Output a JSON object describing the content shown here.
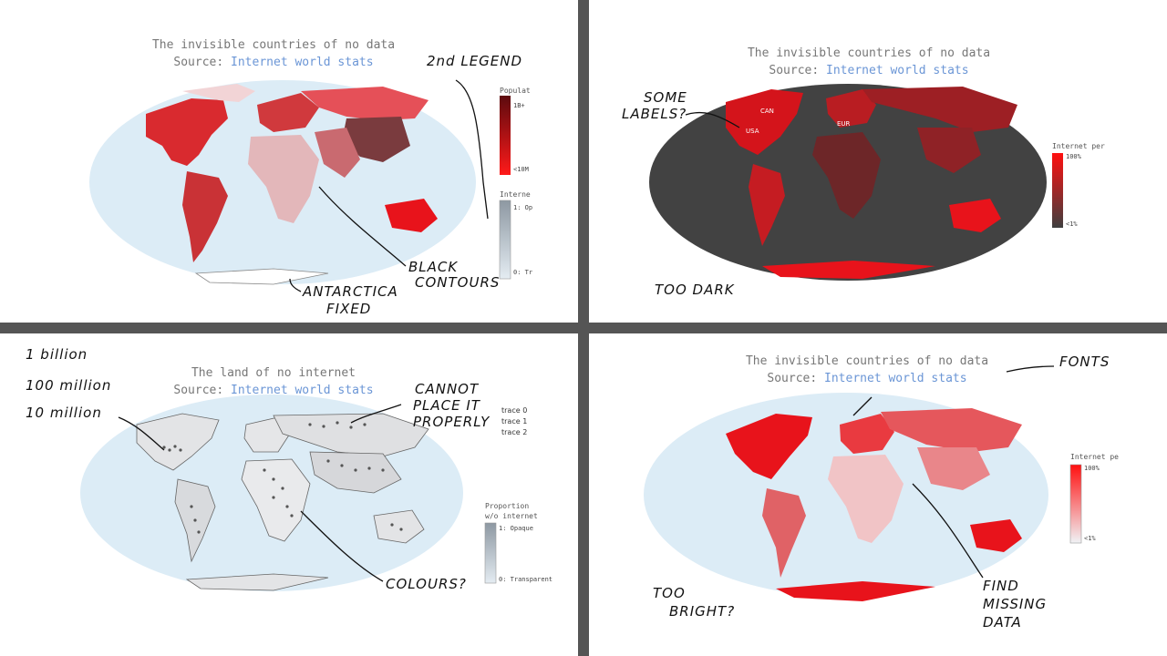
{
  "panels": [
    {
      "title": "The invisible countries of no data",
      "source_label": "Source:",
      "source_link": "Internet world stats",
      "legend1_title": "Populat",
      "legend1_max": "1B+",
      "legend1_min": "<10M",
      "legend2_title": "Interne",
      "legend2_max": "1: Op",
      "legend2_min": "0: Tr",
      "annotations": [
        "2nd LEGEND",
        "BLACK",
        "CONTOURS",
        "ANTARCTICA",
        "FIXED"
      ]
    },
    {
      "title": "The invisible countries of no data",
      "source_label": "Source:",
      "source_link": "Internet world stats",
      "legend_title": "Internet per",
      "legend_max": "100%",
      "legend_min": "<1%",
      "map_labels": [
        "CAN",
        "USA",
        "EUR"
      ],
      "annotations": [
        "SOME",
        "LABELS?",
        "TOO DARK"
      ]
    },
    {
      "title": "The land of no internet",
      "source_label": "Source:",
      "source_link": "Internet world stats",
      "legend_title_line1": "Proportion",
      "legend_title_line2": "w/o internet",
      "legend_max": "1: Opaque",
      "legend_min": "0: Transparent",
      "traces": [
        "trace 0",
        "trace 1",
        "trace 2"
      ],
      "annotations": [
        "1 billion",
        "100 million",
        "10 million",
        "CANNOT",
        "PLACE IT",
        "PROPERLY",
        "COLOURS?"
      ]
    },
    {
      "title": "The invisible countries of no data",
      "source_label": "Source:",
      "source_link": "Internet world stats",
      "legend_title": "Internet pe",
      "legend_max": "100%",
      "legend_min": "<1%",
      "annotations": [
        "FONTS",
        "TOO",
        "BRIGHT?",
        "FIND",
        "MISSING",
        "DATA"
      ]
    }
  ],
  "colors": {
    "ocean": "#dcecf6",
    "dark_ocean": "#3f3f3f",
    "red": "#e8131b",
    "dark_red": "#8b1a1a",
    "link": "#6b96d6"
  }
}
